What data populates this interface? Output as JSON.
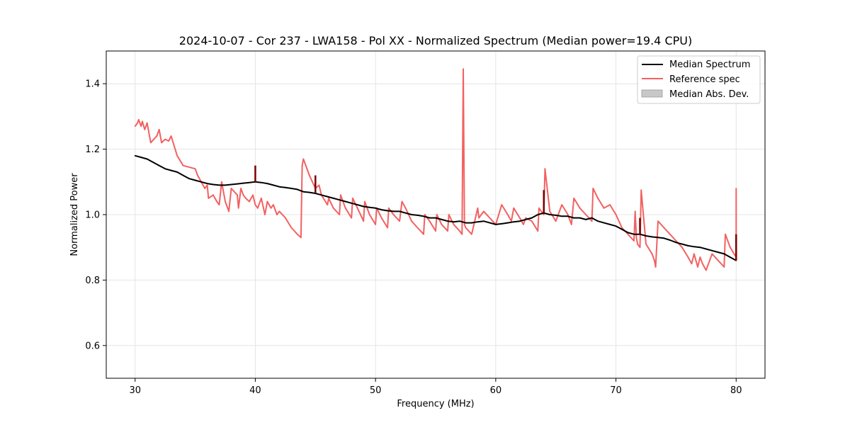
{
  "chart_data": {
    "type": "line",
    "title": "2024-10-07 - Cor 237 - LWA158 - Pol XX - Normalized Spectrum (Median power=19.4 CPU)",
    "xlabel": "Frequency (MHz)",
    "ylabel": "Normalized Power",
    "xlim": [
      27.6,
      82.4
    ],
    "ylim": [
      0.5,
      1.5
    ],
    "xticks": [
      30,
      40,
      50,
      60,
      70,
      80
    ],
    "yticks": [
      0.6,
      0.8,
      1.0,
      1.2,
      1.4
    ],
    "xtick_labels": [
      "30",
      "40",
      "50",
      "60",
      "70",
      "80"
    ],
    "ytick_labels": [
      "0.6",
      "0.8",
      "1.0",
      "1.2",
      "1.4"
    ],
    "grid": true,
    "legend_position": "top-right",
    "legend": [
      {
        "label": "Median Spectrum",
        "style": "line",
        "color": "#000000"
      },
      {
        "label": "Reference spec",
        "style": "line",
        "color": "#f26161"
      },
      {
        "label": "Median Abs. Dev.",
        "style": "patch",
        "color": "#c8c8c8"
      }
    ],
    "series": [
      {
        "name": "Median Spectrum",
        "color": "#000000",
        "x": [
          30.0,
          30.5,
          31.0,
          31.5,
          32.0,
          32.5,
          33.0,
          33.5,
          34.0,
          34.5,
          35.0,
          35.5,
          36.0,
          36.5,
          37.0,
          37.5,
          38.0,
          38.5,
          39.0,
          39.5,
          40.0,
          40.5,
          41.0,
          41.5,
          42.0,
          42.5,
          43.0,
          43.5,
          44.0,
          44.5,
          45.0,
          45.5,
          46.0,
          46.5,
          47.0,
          47.5,
          48.0,
          48.5,
          49.0,
          49.5,
          50.0,
          50.5,
          51.0,
          51.5,
          52.0,
          52.5,
          53.0,
          53.5,
          54.0,
          54.5,
          55.0,
          55.5,
          56.0,
          56.5,
          57.0,
          57.5,
          58.0,
          58.5,
          59.0,
          59.5,
          60.0,
          60.5,
          61.0,
          61.5,
          62.0,
          62.5,
          63.0,
          63.5,
          64.0,
          64.5,
          65.0,
          65.5,
          66.0,
          66.5,
          67.0,
          67.5,
          68.0,
          68.5,
          69.0,
          69.5,
          70.0,
          70.5,
          71.0,
          71.5,
          72.0,
          72.5,
          73.0,
          73.5,
          74.0,
          74.5,
          75.0,
          75.5,
          76.0,
          76.5,
          77.0,
          77.5,
          78.0,
          78.5,
          79.0,
          79.5,
          80.0
        ],
        "values": [
          1.18,
          1.175,
          1.17,
          1.16,
          1.15,
          1.14,
          1.135,
          1.13,
          1.12,
          1.11,
          1.105,
          1.1,
          1.095,
          1.092,
          1.09,
          1.09,
          1.092,
          1.094,
          1.096,
          1.098,
          1.1,
          1.098,
          1.095,
          1.09,
          1.085,
          1.083,
          1.08,
          1.077,
          1.07,
          1.068,
          1.065,
          1.06,
          1.055,
          1.05,
          1.045,
          1.04,
          1.035,
          1.03,
          1.025,
          1.022,
          1.02,
          1.015,
          1.012,
          1.01,
          1.01,
          1.005,
          1.0,
          0.998,
          0.995,
          0.99,
          0.99,
          0.985,
          0.98,
          0.978,
          0.98,
          0.975,
          0.975,
          0.978,
          0.98,
          0.975,
          0.97,
          0.972,
          0.975,
          0.978,
          0.98,
          0.985,
          0.99,
          1.0,
          1.005,
          1.0,
          0.998,
          0.995,
          0.995,
          0.99,
          0.99,
          0.985,
          0.99,
          0.98,
          0.975,
          0.97,
          0.965,
          0.955,
          0.945,
          0.94,
          0.94,
          0.935,
          0.932,
          0.93,
          0.928,
          0.922,
          0.915,
          0.91,
          0.905,
          0.902,
          0.9,
          0.895,
          0.89,
          0.885,
          0.88,
          0.87,
          0.86
        ],
        "spikes": [
          {
            "x": 40.0,
            "value": 1.15
          },
          {
            "x": 45.0,
            "value": 1.12
          },
          {
            "x": 64.0,
            "value": 1.075
          },
          {
            "x": 72.0,
            "value": 0.99
          },
          {
            "x": 80.0,
            "value": 0.94
          }
        ]
      },
      {
        "name": "Reference spec",
        "color": "#f26161",
        "x": [
          30.0,
          30.2,
          30.3,
          30.5,
          30.6,
          30.8,
          31.0,
          31.3,
          31.8,
          32.0,
          32.2,
          32.5,
          32.8,
          33.0,
          33.5,
          34.0,
          35.0,
          35.2,
          35.5,
          35.8,
          36.0,
          36.1,
          36.5,
          36.8,
          37.0,
          37.2,
          37.5,
          37.6,
          37.8,
          38.0,
          38.5,
          38.6,
          38.8,
          39.0,
          39.2,
          39.5,
          39.8,
          40.0,
          40.2,
          40.5,
          40.8,
          41.0,
          41.3,
          41.5,
          41.8,
          42.0,
          42.5,
          43.0,
          43.5,
          43.8,
          43.9,
          44.0,
          44.5,
          45.0,
          45.3,
          45.5,
          46.0,
          46.1,
          46.5,
          47.0,
          47.1,
          47.5,
          48.0,
          48.1,
          48.5,
          49.0,
          49.1,
          49.5,
          50.0,
          50.1,
          50.5,
          51.0,
          51.1,
          51.5,
          52.0,
          52.2,
          52.5,
          53.0,
          53.5,
          54.0,
          54.1,
          54.5,
          55.0,
          55.1,
          55.5,
          56.0,
          56.1,
          56.5,
          57.0,
          57.2,
          57.3,
          57.4,
          57.5,
          58.0,
          58.5,
          58.6,
          59.0,
          60.0,
          60.5,
          61.0,
          61.3,
          61.5,
          62.0,
          62.3,
          62.5,
          63.0,
          63.5,
          63.6,
          64.0,
          64.1,
          64.5,
          65.0,
          65.5,
          66.0,
          66.3,
          66.5,
          67.0,
          67.5,
          68.0,
          68.1,
          68.5,
          69.0,
          69.5,
          70.0,
          70.5,
          71.0,
          71.5,
          71.6,
          71.7,
          71.8,
          72.0,
          72.1,
          72.5,
          73.0,
          73.2,
          73.3,
          73.5,
          74.0,
          74.5,
          75.0,
          75.5,
          76.0,
          76.3,
          76.5,
          76.8,
          77.0,
          77.2,
          77.5,
          77.8,
          78.0,
          78.5,
          79.0,
          79.1,
          79.5,
          80.0,
          80.0
        ],
        "values": [
          1.27,
          1.28,
          1.29,
          1.27,
          1.285,
          1.26,
          1.28,
          1.22,
          1.24,
          1.26,
          1.22,
          1.23,
          1.225,
          1.24,
          1.18,
          1.15,
          1.14,
          1.12,
          1.1,
          1.08,
          1.09,
          1.05,
          1.06,
          1.04,
          1.03,
          1.1,
          1.04,
          1.03,
          1.01,
          1.08,
          1.06,
          1.02,
          1.08,
          1.06,
          1.05,
          1.04,
          1.06,
          1.03,
          1.02,
          1.05,
          1.0,
          1.04,
          1.02,
          1.03,
          1.0,
          1.01,
          0.99,
          0.96,
          0.94,
          0.93,
          1.15,
          1.17,
          1.12,
          1.08,
          1.09,
          1.06,
          1.03,
          1.05,
          1.02,
          1.0,
          1.06,
          1.02,
          0.99,
          1.05,
          1.02,
          0.98,
          1.04,
          1.0,
          0.97,
          1.02,
          0.99,
          0.96,
          1.02,
          1.0,
          0.98,
          1.04,
          1.02,
          0.98,
          0.96,
          0.94,
          1.0,
          0.98,
          0.95,
          1.0,
          0.97,
          0.95,
          1.0,
          0.97,
          0.95,
          0.94,
          1.445,
          0.97,
          0.96,
          0.94,
          1.02,
          0.99,
          1.01,
          0.97,
          1.03,
          1.0,
          0.98,
          1.02,
          0.99,
          0.97,
          0.99,
          0.98,
          0.95,
          1.02,
          1.0,
          1.14,
          1.01,
          0.98,
          1.03,
          1.0,
          0.97,
          1.05,
          1.02,
          1.0,
          0.98,
          1.08,
          1.05,
          1.02,
          1.03,
          1.0,
          0.96,
          0.94,
          0.92,
          1.01,
          0.93,
          0.91,
          0.9,
          1.075,
          0.91,
          0.88,
          0.86,
          0.84,
          0.98,
          0.96,
          0.94,
          0.92,
          0.9,
          0.87,
          0.85,
          0.88,
          0.84,
          0.87,
          0.85,
          0.83,
          0.86,
          0.88,
          0.86,
          0.84,
          0.94,
          0.9,
          0.87,
          1.08
        ]
      }
    ]
  }
}
